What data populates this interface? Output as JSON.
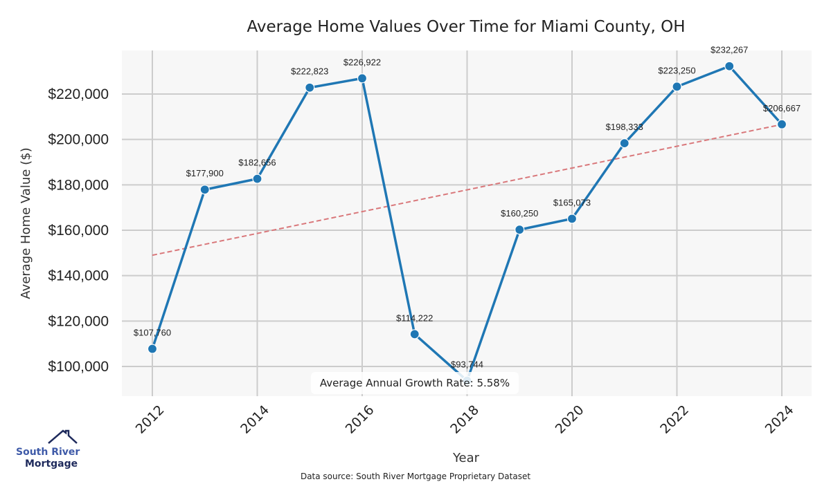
{
  "chart_data": {
    "type": "line",
    "title": "Average Home Values Over Time for Miami County, OH",
    "xlabel": "Year",
    "ylabel": "Average Home Value ($)",
    "x": [
      2012,
      2013,
      2014,
      2015,
      2016,
      2017,
      2018,
      2019,
      2020,
      2021,
      2022,
      2023,
      2024
    ],
    "series": [
      {
        "name": "Average Home Value",
        "color": "#1f77b4",
        "values": [
          107760,
          177900,
          182656,
          222823,
          226922,
          114222,
          93744,
          160250,
          165073,
          198333,
          223250,
          232267,
          206667
        ],
        "labels": [
          "$107,760",
          "$177,900",
          "$182,656",
          "$222,823",
          "$226,922",
          "$114,222",
          "$93,744",
          "$160,250",
          "$165,073",
          "$198,333",
          "$223,250",
          "$232,267",
          "$206,667"
        ]
      },
      {
        "name": "Trend",
        "color": "#d62728",
        "style": "dashed",
        "x": [
          2012,
          2024
        ],
        "values": [
          149000,
          206600
        ]
      }
    ],
    "x_ticks": [
      2012,
      2014,
      2016,
      2018,
      2020,
      2022,
      2024
    ],
    "x_tick_labels": [
      "2012",
      "2014",
      "2016",
      "2018",
      "2020",
      "2022",
      "2024"
    ],
    "y_ticks": [
      100000,
      120000,
      140000,
      160000,
      180000,
      200000,
      220000
    ],
    "y_tick_labels": [
      "$100,000",
      "$120,000",
      "$140,000",
      "$160,000",
      "$180,000",
      "$200,000",
      "$220,000"
    ],
    "xlim": [
      2011.42,
      2024.57
    ],
    "ylim": [
      86800,
      239000
    ],
    "grid": true,
    "annotation": "Average Annual Growth Rate: 5.58%"
  },
  "footer": {
    "source": "Data source: South River Mortgage Proprietary Dataset"
  },
  "logo": {
    "line1": "South River",
    "line2": "Mortgage"
  },
  "colors": {
    "line": "#1f77b4",
    "trend": "#d62728",
    "plot_bg": "#f7f7f7",
    "grid": "#cccccc",
    "logo_light": "#3e5aa8",
    "logo_dark": "#1e2a5c"
  }
}
